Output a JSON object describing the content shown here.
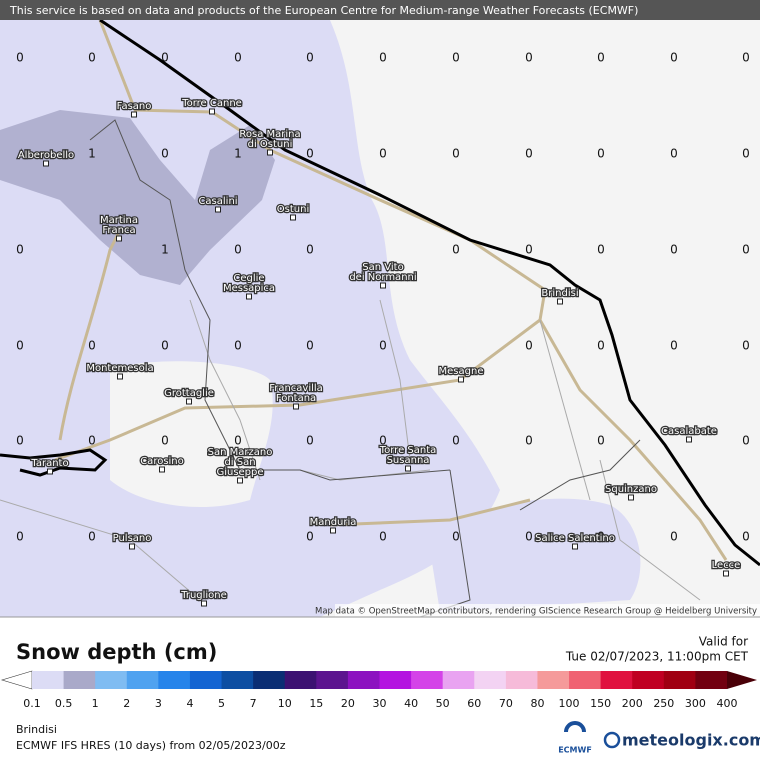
{
  "header": {
    "notice": "This service is based on data and products of the European Centre for Medium-range Weather Forecasts (ECMWF)"
  },
  "map": {
    "grid": {
      "rows": [
        [
          0,
          0,
          0,
          0,
          0,
          0,
          0,
          0,
          0,
          0,
          0
        ],
        [
          null,
          1,
          0,
          1,
          0,
          0,
          0,
          0,
          0,
          0,
          0
        ],
        [
          0,
          null,
          1,
          0,
          0,
          null,
          0,
          0,
          0,
          0,
          0
        ],
        [
          0,
          0,
          0,
          0,
          0,
          0,
          null,
          0,
          0,
          0,
          0
        ],
        [
          0,
          0,
          0,
          0,
          0,
          0,
          0,
          0,
          0,
          null,
          0
        ],
        [
          0,
          0,
          null,
          null,
          0,
          0,
          0,
          0,
          0,
          0,
          0
        ]
      ]
    },
    "places": [
      {
        "lines": [
          "Fasano"
        ]
      },
      {
        "lines": [
          "Torre Canne"
        ]
      },
      {
        "lines": [
          "Rosa Marina",
          "di Ostuni"
        ]
      },
      {
        "lines": [
          "Alberobello"
        ]
      },
      {
        "lines": [
          "Casalini"
        ]
      },
      {
        "lines": [
          "Ostuni"
        ]
      },
      {
        "lines": [
          "Martina",
          "Franca"
        ]
      },
      {
        "lines": [
          "San Vito",
          "dei Normanni"
        ]
      },
      {
        "lines": [
          "Ceglie",
          "Messapica"
        ]
      },
      {
        "lines": [
          "Brindisi"
        ]
      },
      {
        "lines": [
          "Montemesola"
        ]
      },
      {
        "lines": [
          "Grottaglie"
        ]
      },
      {
        "lines": [
          "Francavilla",
          "Fontana"
        ]
      },
      {
        "lines": [
          "Mesagne"
        ]
      },
      {
        "lines": [
          "Taranto"
        ]
      },
      {
        "lines": [
          "Carosino"
        ]
      },
      {
        "lines": [
          "San Marzano",
          "di San",
          "Giuseppe"
        ]
      },
      {
        "lines": [
          "Torre Santa",
          "Susanna"
        ]
      },
      {
        "lines": [
          "Casalabate"
        ]
      },
      {
        "lines": [
          "Squinzano"
        ]
      },
      {
        "lines": [
          "Manduria"
        ]
      },
      {
        "lines": [
          "Pulsano"
        ]
      },
      {
        "lines": [
          "Salice Salentino"
        ]
      },
      {
        "lines": [
          "Lecce"
        ]
      },
      {
        "lines": [
          "Truglione"
        ]
      }
    ],
    "attribution": "Map data © OpenStreetMap contributors, rendering GIScience Research Group @ Heidelberg University"
  },
  "legend": {
    "title": "Snow depth (cm)",
    "valid_label": "Valid for",
    "valid_time": "Tue 02/07/2023, 11:00pm CET",
    "labels": [
      "0.1",
      "0.5",
      "1",
      "2",
      "3",
      "4",
      "5",
      "7",
      "10",
      "15",
      "20",
      "30",
      "40",
      "50",
      "60",
      "70",
      "80",
      "100",
      "150",
      "200",
      "250",
      "300",
      "400"
    ],
    "colors": [
      "#dcdcf5",
      "#a9a9c9",
      "#7fbcf2",
      "#4fa2f0",
      "#2684ea",
      "#1464d2",
      "#0d4ea2",
      "#0b2e74",
      "#3c1272",
      "#5c148f",
      "#8c12c0",
      "#b414e0",
      "#d443e8",
      "#e9a3f1",
      "#f3d3f3",
      "#f6bbd9",
      "#f59a9a",
      "#f06272",
      "#e0123f",
      "#c00022",
      "#a00012",
      "#720010"
    ],
    "end_color": "#4a0008"
  },
  "footer": {
    "location": "Brindisi",
    "model": "ECMWF IFS HRES (10 days) from 02/05/2023/00z",
    "ecmwf": "ECMWF",
    "brand": "meteologix.com"
  }
}
